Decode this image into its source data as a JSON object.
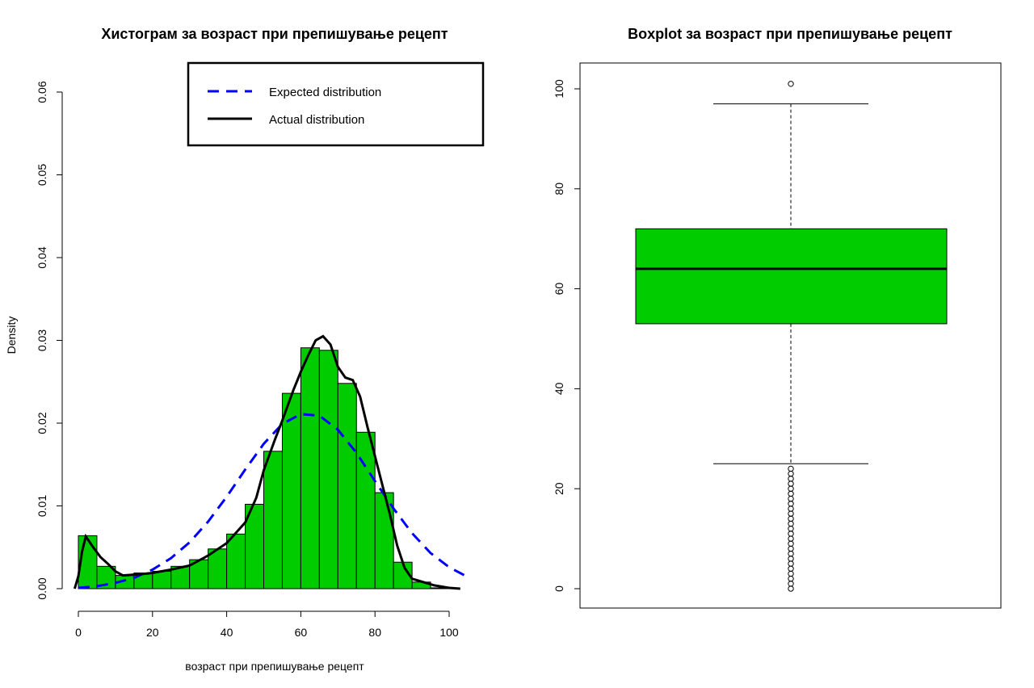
{
  "chart_data": [
    {
      "type": "bar",
      "subtype": "histogram",
      "title": "Хистограм за  возраст при препишување рецепт",
      "xlabel": "возраст при препишување рецепт",
      "ylabel": "Density",
      "xlim": [
        -3,
        105
      ],
      "ylim": [
        0,
        0.06
      ],
      "xticks": [
        "0",
        "20",
        "40",
        "60",
        "80",
        "100"
      ],
      "xtick_values": [
        0,
        20,
        40,
        60,
        80,
        100
      ],
      "yticks": [
        "0.00",
        "0.01",
        "0.02",
        "0.03",
        "0.04",
        "0.05",
        "0.06"
      ],
      "ytick_values": [
        0,
        0.01,
        0.02,
        0.03,
        0.04,
        0.05,
        0.06
      ],
      "bar_color": "#00CC00",
      "bin_width": 5,
      "bin_starts": [
        0,
        5,
        10,
        15,
        20,
        25,
        30,
        35,
        40,
        45,
        50,
        55,
        60,
        65,
        70,
        75,
        80,
        85,
        90,
        95
      ],
      "densities": [
        0.0064,
        0.0027,
        0.0016,
        0.0019,
        0.0021,
        0.0027,
        0.0035,
        0.0048,
        0.0066,
        0.0102,
        0.0166,
        0.0236,
        0.0291,
        0.0288,
        0.0248,
        0.0189,
        0.0116,
        0.0032,
        0.0008,
        0.0001
      ],
      "legend": {
        "position": "top-right",
        "entries": [
          {
            "label": "Expected distribution",
            "color": "#0000FF",
            "style": "dashed"
          },
          {
            "label": "Actual distribution",
            "color": "#000000",
            "style": "solid"
          }
        ]
      },
      "series": [
        {
          "name": "Expected distribution",
          "color": "#0000FF",
          "style": "dashed",
          "x": [
            0,
            5,
            10,
            15,
            20,
            25,
            30,
            35,
            40,
            45,
            50,
            55,
            60,
            65,
            70,
            75,
            80,
            85,
            90,
            95,
            100,
            105
          ],
          "y": [
            0.0001,
            0.0003,
            0.0007,
            0.0013,
            0.0023,
            0.0037,
            0.0056,
            0.0081,
            0.0111,
            0.0144,
            0.0175,
            0.0199,
            0.0211,
            0.0209,
            0.0192,
            0.0164,
            0.013,
            0.0097,
            0.0067,
            0.0043,
            0.0026,
            0.0014
          ]
        },
        {
          "name": "Actual distribution",
          "color": "#000000",
          "style": "solid",
          "x": [
            -1,
            0,
            1,
            2,
            4,
            6,
            8,
            10,
            12,
            15,
            18,
            20,
            25,
            30,
            35,
            40,
            45,
            48,
            50,
            53,
            55,
            58,
            60,
            62,
            64,
            66,
            68,
            70,
            72,
            74,
            76,
            78,
            80,
            82,
            84,
            86,
            88,
            90,
            93,
            96,
            100,
            103
          ],
          "y": [
            0.0,
            0.0015,
            0.0045,
            0.0063,
            0.005,
            0.0038,
            0.003,
            0.0021,
            0.0016,
            0.0017,
            0.0018,
            0.0019,
            0.0023,
            0.0028,
            0.004,
            0.0055,
            0.008,
            0.011,
            0.0143,
            0.018,
            0.0203,
            0.024,
            0.0262,
            0.0282,
            0.03,
            0.0305,
            0.0295,
            0.0268,
            0.0255,
            0.0252,
            0.0232,
            0.0195,
            0.016,
            0.0125,
            0.009,
            0.0052,
            0.0025,
            0.0012,
            0.0008,
            0.0004,
            0.0001,
            0.0
          ]
        }
      ]
    },
    {
      "type": "boxplot",
      "title": "Boxplot за  возраст при препишување рецепт",
      "ylim": [
        -4,
        105
      ],
      "yticks": [
        "0",
        "20",
        "40",
        "60",
        "80",
        "100"
      ],
      "ytick_values": [
        0,
        20,
        40,
        60,
        80,
        100
      ],
      "box_color": "#00CC00",
      "stats": {
        "lower_whisker": 25,
        "q1": 53,
        "median": 64,
        "q3": 72,
        "upper_whisker": 97
      },
      "outliers": [
        0,
        1,
        2,
        3,
        4,
        5,
        6,
        7,
        8,
        9,
        10,
        11,
        12,
        13,
        14,
        15,
        16,
        17,
        18,
        19,
        20,
        21,
        22,
        23,
        24,
        101
      ]
    }
  ]
}
